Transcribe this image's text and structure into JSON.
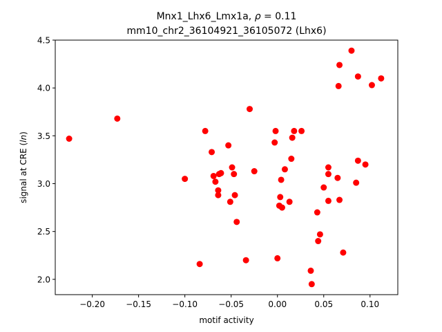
{
  "chart_data": {
    "type": "scatter",
    "title_line1": "Mnx1_Lhx6_Lmx1a, ",
    "title_rho": "ρ",
    "title_rho_value": " = 0.11",
    "title_line2": "mm10_chr2_36104921_36105072 (Lhx6)",
    "xlabel": "motif activity",
    "ylabel_prefix": "signal at CRE (",
    "ylabel_italic": "ln",
    "ylabel_suffix": ")",
    "xlim": [
      -0.24,
      0.13
    ],
    "ylim": [
      1.84,
      4.5
    ],
    "xticks": [
      -0.2,
      -0.15,
      -0.1,
      -0.05,
      0.0,
      0.05,
      0.1
    ],
    "xtick_labels": [
      "−0.20",
      "−0.15",
      "−0.10",
      "−0.05",
      "0.00",
      "0.05",
      "0.10"
    ],
    "yticks": [
      2.0,
      2.5,
      3.0,
      3.5,
      4.0,
      4.5
    ],
    "ytick_labels": [
      "2.0",
      "2.5",
      "3.0",
      "3.5",
      "4.0",
      "4.5"
    ],
    "marker_color": "#ff0000",
    "grid": false,
    "points": [
      {
        "x": -0.225,
        "y": 3.47
      },
      {
        "x": -0.173,
        "y": 3.68
      },
      {
        "x": -0.1,
        "y": 3.05
      },
      {
        "x": -0.084,
        "y": 2.16
      },
      {
        "x": -0.078,
        "y": 3.55
      },
      {
        "x": -0.071,
        "y": 3.33
      },
      {
        "x": -0.069,
        "y": 3.08
      },
      {
        "x": -0.067,
        "y": 3.02
      },
      {
        "x": -0.064,
        "y": 2.93
      },
      {
        "x": -0.064,
        "y": 2.88
      },
      {
        "x": -0.063,
        "y": 3.1
      },
      {
        "x": -0.061,
        "y": 3.11
      },
      {
        "x": -0.053,
        "y": 3.4
      },
      {
        "x": -0.051,
        "y": 2.81
      },
      {
        "x": -0.049,
        "y": 3.17
      },
      {
        "x": -0.047,
        "y": 3.1
      },
      {
        "x": -0.046,
        "y": 2.88
      },
      {
        "x": -0.044,
        "y": 2.6
      },
      {
        "x": -0.034,
        "y": 2.2
      },
      {
        "x": -0.03,
        "y": 3.78
      },
      {
        "x": -0.025,
        "y": 3.13
      },
      {
        "x": -0.003,
        "y": 3.43
      },
      {
        "x": -0.002,
        "y": 3.55
      },
      {
        "x": 0.0,
        "y": 2.22
      },
      {
        "x": 0.002,
        "y": 2.77
      },
      {
        "x": 0.003,
        "y": 2.86
      },
      {
        "x": 0.004,
        "y": 3.04
      },
      {
        "x": 0.005,
        "y": 2.75
      },
      {
        "x": 0.008,
        "y": 3.15
      },
      {
        "x": 0.013,
        "y": 2.81
      },
      {
        "x": 0.015,
        "y": 3.26
      },
      {
        "x": 0.016,
        "y": 3.48
      },
      {
        "x": 0.018,
        "y": 3.55
      },
      {
        "x": 0.026,
        "y": 3.55
      },
      {
        "x": 0.036,
        "y": 2.09
      },
      {
        "x": 0.037,
        "y": 1.95
      },
      {
        "x": 0.043,
        "y": 2.7
      },
      {
        "x": 0.044,
        "y": 2.4
      },
      {
        "x": 0.046,
        "y": 2.47
      },
      {
        "x": 0.05,
        "y": 2.96
      },
      {
        "x": 0.055,
        "y": 2.82
      },
      {
        "x": 0.055,
        "y": 3.1
      },
      {
        "x": 0.055,
        "y": 3.17
      },
      {
        "x": 0.065,
        "y": 3.06
      },
      {
        "x": 0.066,
        "y": 4.02
      },
      {
        "x": 0.067,
        "y": 4.24
      },
      {
        "x": 0.067,
        "y": 2.83
      },
      {
        "x": 0.071,
        "y": 2.28
      },
      {
        "x": 0.08,
        "y": 4.39
      },
      {
        "x": 0.085,
        "y": 3.01
      },
      {
        "x": 0.087,
        "y": 3.24
      },
      {
        "x": 0.087,
        "y": 4.12
      },
      {
        "x": 0.095,
        "y": 3.2
      },
      {
        "x": 0.102,
        "y": 4.03
      },
      {
        "x": 0.112,
        "y": 4.1
      }
    ]
  }
}
